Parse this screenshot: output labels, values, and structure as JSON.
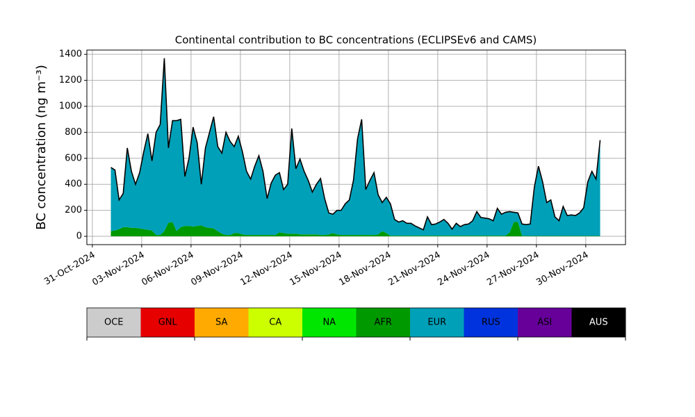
{
  "chart_data": {
    "type": "stacked_area",
    "title": "Continental contribution to BC concentrations (ECLIPSEv6 and CAMS)",
    "y_label": "BC concentration (ng m⁻³)",
    "x": [
      "2024-11-01T03:00",
      "2024-11-01T09:00",
      "2024-11-01T15:00",
      "2024-11-01T21:00",
      "2024-11-02T03:00",
      "2024-11-02T09:00",
      "2024-11-02T15:00",
      "2024-11-02T21:00",
      "2024-11-03T03:00",
      "2024-11-03T09:00",
      "2024-11-03T15:00",
      "2024-11-03T21:00",
      "2024-11-04T03:00",
      "2024-11-04T09:00",
      "2024-11-04T15:00",
      "2024-11-04T21:00",
      "2024-11-05T03:00",
      "2024-11-05T09:00",
      "2024-11-05T15:00",
      "2024-11-05T21:00",
      "2024-11-06T03:00",
      "2024-11-06T09:00",
      "2024-11-06T15:00",
      "2024-11-06T21:00",
      "2024-11-07T03:00",
      "2024-11-07T09:00",
      "2024-11-07T15:00",
      "2024-11-07T21:00",
      "2024-11-08T03:00",
      "2024-11-08T09:00",
      "2024-11-08T15:00",
      "2024-11-08T21:00",
      "2024-11-09T03:00",
      "2024-11-09T09:00",
      "2024-11-09T15:00",
      "2024-11-09T21:00",
      "2024-11-10T03:00",
      "2024-11-10T09:00",
      "2024-11-10T15:00",
      "2024-11-10T21:00",
      "2024-11-11T03:00",
      "2024-11-11T09:00",
      "2024-11-11T15:00",
      "2024-11-11T21:00",
      "2024-11-12T03:00",
      "2024-11-12T09:00",
      "2024-11-12T15:00",
      "2024-11-12T21:00",
      "2024-11-13T03:00",
      "2024-11-13T09:00",
      "2024-11-13T15:00",
      "2024-11-13T21:00",
      "2024-11-14T03:00",
      "2024-11-14T09:00",
      "2024-11-14T15:00",
      "2024-11-14T21:00",
      "2024-11-15T03:00",
      "2024-11-15T09:00",
      "2024-11-15T15:00",
      "2024-11-15T21:00",
      "2024-11-16T03:00",
      "2024-11-16T09:00",
      "2024-11-16T15:00",
      "2024-11-16T21:00",
      "2024-11-17T03:00",
      "2024-11-17T09:00",
      "2024-11-17T15:00",
      "2024-11-17T21:00",
      "2024-11-18T03:00",
      "2024-11-18T09:00",
      "2024-11-18T15:00",
      "2024-11-18T21:00",
      "2024-11-19T03:00",
      "2024-11-19T09:00",
      "2024-11-19T15:00",
      "2024-11-19T21:00",
      "2024-11-20T03:00",
      "2024-11-20T09:00",
      "2024-11-20T15:00",
      "2024-11-20T21:00",
      "2024-11-21T03:00",
      "2024-11-21T09:00",
      "2024-11-21T15:00",
      "2024-11-21T21:00",
      "2024-11-22T03:00",
      "2024-11-22T09:00",
      "2024-11-22T15:00",
      "2024-11-22T21:00",
      "2024-11-23T03:00",
      "2024-11-23T09:00",
      "2024-11-23T15:00",
      "2024-11-23T21:00",
      "2024-11-24T03:00",
      "2024-11-24T09:00",
      "2024-11-24T15:00",
      "2024-11-24T21:00",
      "2024-11-25T03:00",
      "2024-11-25T09:00",
      "2024-11-25T15:00",
      "2024-11-25T21:00",
      "2024-11-26T03:00",
      "2024-11-26T09:00",
      "2024-11-26T15:00",
      "2024-11-26T21:00",
      "2024-11-27T03:00",
      "2024-11-27T09:00",
      "2024-11-27T15:00",
      "2024-11-27T21:00",
      "2024-11-28T03:00",
      "2024-11-28T09:00",
      "2024-11-28T15:00",
      "2024-11-28T21:00",
      "2024-11-29T03:00",
      "2024-11-29T09:00",
      "2024-11-29T15:00",
      "2024-11-29T21:00",
      "2024-11-30T03:00",
      "2024-11-30T09:00",
      "2024-11-30T15:00",
      "2024-11-30T21:00"
    ],
    "series": [
      {
        "name": "AFR",
        "values": [
          40,
          45,
          55,
          70,
          70,
          65,
          65,
          60,
          55,
          50,
          45,
          10,
          10,
          40,
          105,
          110,
          40,
          70,
          80,
          80,
          75,
          80,
          85,
          70,
          65,
          60,
          40,
          20,
          10,
          10,
          25,
          25,
          15,
          10,
          10,
          10,
          10,
          10,
          10,
          10,
          10,
          30,
          25,
          20,
          20,
          20,
          15,
          15,
          15,
          15,
          15,
          10,
          10,
          15,
          25,
          15,
          10,
          10,
          10,
          10,
          10,
          10,
          10,
          10,
          10,
          15,
          40,
          25,
          5,
          5,
          5,
          5,
          5,
          5,
          5,
          5,
          5,
          5,
          5,
          5,
          5,
          5,
          5,
          5,
          5,
          5,
          5,
          5,
          5,
          5,
          5,
          5,
          5,
          5,
          5,
          5,
          5,
          30,
          110,
          110,
          5,
          3,
          3,
          3,
          3,
          3,
          3,
          3,
          3,
          3,
          3,
          3,
          3,
          3,
          3,
          3,
          3,
          3,
          3,
          3
        ]
      },
      {
        "name": "EUR",
        "values": [
          490,
          465,
          225,
          260,
          610,
          435,
          335,
          430,
          595,
          740,
          535,
          790,
          850,
          1330,
          575,
          780,
          850,
          830,
          380,
          520,
          765,
          640,
          315,
          610,
          735,
          860,
          650,
          620,
          790,
          720,
          665,
          745,
          635,
          490,
          430,
          530,
          610,
          490,
          280,
          400,
          460,
          460,
          335,
          380,
          810,
          500,
          580,
          485,
          415,
          325,
          385,
          435,
          280,
          165,
          145,
          185,
          190,
          240,
          270,
          420,
          740,
          890,
          350,
          420,
          480,
          305,
          220,
          275,
          245,
          125,
          105,
          115,
          95,
          95,
          75,
          60,
          45,
          145,
          85,
          90,
          105,
          125,
          95,
          50,
          95,
          70,
          85,
          90,
          115,
          185,
          140,
          135,
          130,
          115,
          210,
          165,
          180,
          160,
          75,
          70,
          90,
          87,
          92,
          377,
          537,
          417,
          257,
          277,
          147,
          117,
          227,
          157,
          162,
          157,
          177,
          217,
          417,
          497,
          437,
          737
        ]
      }
    ],
    "xlim": [
      "2024-10-30T16:00",
      "2024-12-02T10:00"
    ],
    "xticks": [
      {
        "value": "2024-10-31T00:00",
        "label": "31-Oct-2024"
      },
      {
        "value": "2024-11-03T00:00",
        "label": "03-Nov-2024"
      },
      {
        "value": "2024-11-06T00:00",
        "label": "06-Nov-2024"
      },
      {
        "value": "2024-11-09T00:00",
        "label": "09-Nov-2024"
      },
      {
        "value": "2024-11-12T00:00",
        "label": "12-Nov-2024"
      },
      {
        "value": "2024-11-15T00:00",
        "label": "15-Nov-2024"
      },
      {
        "value": "2024-11-18T00:00",
        "label": "18-Nov-2024"
      },
      {
        "value": "2024-11-21T00:00",
        "label": "21-Nov-2024"
      },
      {
        "value": "2024-11-24T00:00",
        "label": "24-Nov-2024"
      },
      {
        "value": "2024-11-27T00:00",
        "label": "27-Nov-2024"
      },
      {
        "value": "2024-11-30T00:00",
        "label": "30-Nov-2024"
      }
    ],
    "ylim": [
      -64,
      1433
    ],
    "yticks": [
      0,
      200,
      400,
      600,
      800,
      1000,
      1200,
      1400
    ],
    "grid": true,
    "colorbar": {
      "labels": [
        "OCE",
        "GNL",
        "SA",
        "CA",
        "NA",
        "AFR",
        "EUR",
        "RUS",
        "ASI",
        "AUS"
      ],
      "colors": [
        "#cccccc",
        "#e60000",
        "#ffaa00",
        "#ccff00",
        "#00e600",
        "#009900",
        "#00a0b8",
        "#0033dd",
        "#660099",
        "#000000"
      ]
    }
  }
}
